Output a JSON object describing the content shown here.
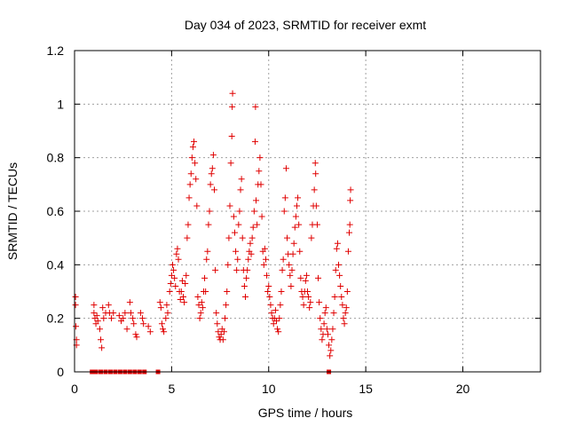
{
  "chart_data": {
    "type": "scatter",
    "title": "Day 034 of 2023, SRMTID for receiver exmt",
    "xlabel": "GPS time / hours",
    "ylabel": "SRMTID / TECUs",
    "xlim": [
      0,
      24
    ],
    "ylim": [
      0,
      1.2
    ],
    "x_ticks": [
      0,
      5,
      10,
      15,
      20
    ],
    "x_tick_labels": [
      "0",
      "5",
      "10",
      "15",
      "20"
    ],
    "y_ticks": [
      0,
      0.2,
      0.4,
      0.6,
      0.8,
      1.0,
      1.2
    ],
    "y_tick_labels": [
      "0",
      "0.2",
      "0.4",
      "0.6",
      "0.8",
      "1",
      "1.2"
    ],
    "grid": true,
    "marker": "plus",
    "color": "#e00000",
    "zero_markers": {
      "marker": "square",
      "x": [
        0.9,
        1.1,
        1.35,
        1.6,
        1.85,
        2.1,
        2.35,
        2.6,
        2.85,
        3.1,
        3.35,
        3.6,
        4.3,
        13.1
      ]
    },
    "series": [
      {
        "name": "SRMTID",
        "points": [
          [
            0.05,
            0.28
          ],
          [
            0.05,
            0.25
          ],
          [
            0.07,
            0.17
          ],
          [
            0.1,
            0.12
          ],
          [
            0.1,
            0.1
          ],
          [
            1.0,
            0.25
          ],
          [
            1.0,
            0.22
          ],
          [
            1.05,
            0.2
          ],
          [
            1.1,
            0.18
          ],
          [
            1.15,
            0.21
          ],
          [
            1.2,
            0.19
          ],
          [
            1.3,
            0.16
          ],
          [
            1.35,
            0.12
          ],
          [
            1.4,
            0.09
          ],
          [
            1.45,
            0.24
          ],
          [
            1.5,
            0.2
          ],
          [
            1.6,
            0.22
          ],
          [
            1.75,
            0.25
          ],
          [
            1.8,
            0.22
          ],
          [
            1.9,
            0.2
          ],
          [
            2.0,
            0.22
          ],
          [
            2.3,
            0.21
          ],
          [
            2.4,
            0.19
          ],
          [
            2.5,
            0.2
          ],
          [
            2.6,
            0.22
          ],
          [
            2.7,
            0.16
          ],
          [
            2.85,
            0.26
          ],
          [
            2.9,
            0.22
          ],
          [
            3.0,
            0.2
          ],
          [
            3.05,
            0.18
          ],
          [
            3.15,
            0.14
          ],
          [
            3.2,
            0.13
          ],
          [
            3.4,
            0.22
          ],
          [
            3.5,
            0.2
          ],
          [
            3.55,
            0.18
          ],
          [
            3.8,
            0.17
          ],
          [
            3.9,
            0.15
          ],
          [
            4.4,
            0.26
          ],
          [
            4.45,
            0.24
          ],
          [
            4.5,
            0.18
          ],
          [
            4.55,
            0.16
          ],
          [
            4.6,
            0.15
          ],
          [
            4.7,
            0.2
          ],
          [
            4.75,
            0.25
          ],
          [
            4.8,
            0.22
          ],
          [
            4.9,
            0.3
          ],
          [
            4.95,
            0.33
          ],
          [
            5.0,
            0.36
          ],
          [
            5.05,
            0.4
          ],
          [
            5.1,
            0.38
          ],
          [
            5.15,
            0.35
          ],
          [
            5.2,
            0.32
          ],
          [
            5.25,
            0.44
          ],
          [
            5.3,
            0.46
          ],
          [
            5.35,
            0.42
          ],
          [
            5.4,
            0.3
          ],
          [
            5.45,
            0.27
          ],
          [
            5.5,
            0.3
          ],
          [
            5.55,
            0.34
          ],
          [
            5.6,
            0.28
          ],
          [
            5.65,
            0.26
          ],
          [
            5.7,
            0.33
          ],
          [
            5.75,
            0.36
          ],
          [
            5.8,
            0.5
          ],
          [
            5.85,
            0.55
          ],
          [
            5.9,
            0.65
          ],
          [
            5.95,
            0.7
          ],
          [
            6.0,
            0.74
          ],
          [
            6.05,
            0.8
          ],
          [
            6.1,
            0.84
          ],
          [
            6.15,
            0.86
          ],
          [
            6.2,
            0.78
          ],
          [
            6.25,
            0.72
          ],
          [
            6.3,
            0.62
          ],
          [
            6.35,
            0.28
          ],
          [
            6.4,
            0.25
          ],
          [
            6.45,
            0.2
          ],
          [
            6.5,
            0.22
          ],
          [
            6.55,
            0.26
          ],
          [
            6.6,
            0.24
          ],
          [
            6.65,
            0.3
          ],
          [
            6.7,
            0.35
          ],
          [
            6.75,
            0.3
          ],
          [
            6.8,
            0.42
          ],
          [
            6.85,
            0.45
          ],
          [
            6.9,
            0.55
          ],
          [
            6.95,
            0.6
          ],
          [
            7.0,
            0.7
          ],
          [
            7.05,
            0.74
          ],
          [
            7.1,
            0.76
          ],
          [
            7.15,
            0.81
          ],
          [
            7.2,
            0.68
          ],
          [
            7.25,
            0.38
          ],
          [
            7.3,
            0.22
          ],
          [
            7.35,
            0.18
          ],
          [
            7.4,
            0.15
          ],
          [
            7.45,
            0.13
          ],
          [
            7.5,
            0.12
          ],
          [
            7.55,
            0.14
          ],
          [
            7.6,
            0.16
          ],
          [
            7.65,
            0.12
          ],
          [
            7.7,
            0.15
          ],
          [
            7.75,
            0.2
          ],
          [
            7.8,
            0.25
          ],
          [
            7.85,
            0.3
          ],
          [
            7.9,
            0.4
          ],
          [
            7.95,
            0.5
          ],
          [
            8.0,
            0.62
          ],
          [
            8.05,
            0.78
          ],
          [
            8.1,
            0.88
          ],
          [
            8.12,
            0.99
          ],
          [
            8.14,
            1.04
          ],
          [
            8.2,
            0.58
          ],
          [
            8.25,
            0.52
          ],
          [
            8.3,
            0.45
          ],
          [
            8.35,
            0.38
          ],
          [
            8.4,
            0.42
          ],
          [
            8.45,
            0.55
          ],
          [
            8.5,
            0.6
          ],
          [
            8.55,
            0.68
          ],
          [
            8.6,
            0.72
          ],
          [
            8.65,
            0.5
          ],
          [
            8.7,
            0.38
          ],
          [
            8.75,
            0.32
          ],
          [
            8.8,
            0.28
          ],
          [
            8.85,
            0.35
          ],
          [
            8.9,
            0.38
          ],
          [
            8.95,
            0.42
          ],
          [
            9.0,
            0.45
          ],
          [
            9.05,
            0.48
          ],
          [
            9.1,
            0.44
          ],
          [
            9.15,
            0.5
          ],
          [
            9.2,
            0.54
          ],
          [
            9.25,
            0.6
          ],
          [
            9.3,
            0.86
          ],
          [
            9.32,
            0.99
          ],
          [
            9.35,
            0.64
          ],
          [
            9.4,
            0.55
          ],
          [
            9.45,
            0.7
          ],
          [
            9.5,
            0.75
          ],
          [
            9.55,
            0.8
          ],
          [
            9.6,
            0.7
          ],
          [
            9.65,
            0.58
          ],
          [
            9.7,
            0.45
          ],
          [
            9.75,
            0.4
          ],
          [
            9.8,
            0.46
          ],
          [
            9.85,
            0.42
          ],
          [
            9.9,
            0.36
          ],
          [
            9.95,
            0.3
          ],
          [
            10.0,
            0.32
          ],
          [
            10.05,
            0.28
          ],
          [
            10.1,
            0.25
          ],
          [
            10.15,
            0.22
          ],
          [
            10.2,
            0.2
          ],
          [
            10.25,
            0.18
          ],
          [
            10.3,
            0.2
          ],
          [
            10.35,
            0.23
          ],
          [
            10.4,
            0.19
          ],
          [
            10.45,
            0.16
          ],
          [
            10.5,
            0.15
          ],
          [
            10.55,
            0.2
          ],
          [
            10.6,
            0.25
          ],
          [
            10.65,
            0.3
          ],
          [
            10.7,
            0.38
          ],
          [
            10.75,
            0.42
          ],
          [
            10.8,
            0.6
          ],
          [
            10.85,
            0.65
          ],
          [
            10.9,
            0.76
          ],
          [
            10.95,
            0.5
          ],
          [
            11.0,
            0.44
          ],
          [
            11.05,
            0.4
          ],
          [
            11.1,
            0.36
          ],
          [
            11.15,
            0.32
          ],
          [
            11.2,
            0.38
          ],
          [
            11.25,
            0.44
          ],
          [
            11.3,
            0.48
          ],
          [
            11.35,
            0.54
          ],
          [
            11.4,
            0.58
          ],
          [
            11.45,
            0.62
          ],
          [
            11.5,
            0.65
          ],
          [
            11.55,
            0.55
          ],
          [
            11.6,
            0.45
          ],
          [
            11.65,
            0.35
          ],
          [
            11.7,
            0.3
          ],
          [
            11.75,
            0.28
          ],
          [
            11.8,
            0.25
          ],
          [
            11.85,
            0.3
          ],
          [
            11.9,
            0.34
          ],
          [
            11.95,
            0.36
          ],
          [
            12.0,
            0.3
          ],
          [
            12.05,
            0.28
          ],
          [
            12.1,
            0.24
          ],
          [
            12.15,
            0.26
          ],
          [
            12.2,
            0.5
          ],
          [
            12.25,
            0.55
          ],
          [
            12.3,
            0.62
          ],
          [
            12.35,
            0.68
          ],
          [
            12.4,
            0.78
          ],
          [
            12.42,
            0.74
          ],
          [
            12.45,
            0.62
          ],
          [
            12.5,
            0.55
          ],
          [
            12.55,
            0.35
          ],
          [
            12.6,
            0.26
          ],
          [
            12.65,
            0.2
          ],
          [
            12.7,
            0.16
          ],
          [
            12.75,
            0.12
          ],
          [
            12.8,
            0.14
          ],
          [
            12.85,
            0.18
          ],
          [
            12.9,
            0.22
          ],
          [
            12.95,
            0.24
          ],
          [
            13.0,
            0.16
          ],
          [
            13.05,
            0.14
          ],
          [
            13.1,
            0.1
          ],
          [
            13.15,
            0.06
          ],
          [
            13.2,
            0.08
          ],
          [
            13.25,
            0.12
          ],
          [
            13.3,
            0.16
          ],
          [
            13.35,
            0.22
          ],
          [
            13.4,
            0.28
          ],
          [
            13.45,
            0.38
          ],
          [
            13.5,
            0.46
          ],
          [
            13.55,
            0.48
          ],
          [
            13.6,
            0.4
          ],
          [
            13.65,
            0.36
          ],
          [
            13.7,
            0.32
          ],
          [
            13.75,
            0.28
          ],
          [
            13.8,
            0.25
          ],
          [
            13.85,
            0.2
          ],
          [
            13.9,
            0.18
          ],
          [
            13.95,
            0.22
          ],
          [
            14.0,
            0.24
          ],
          [
            14.05,
            0.3
          ],
          [
            14.1,
            0.45
          ],
          [
            14.15,
            0.52
          ],
          [
            14.18,
            0.55
          ],
          [
            14.2,
            0.64
          ],
          [
            14.22,
            0.68
          ]
        ]
      }
    ]
  }
}
